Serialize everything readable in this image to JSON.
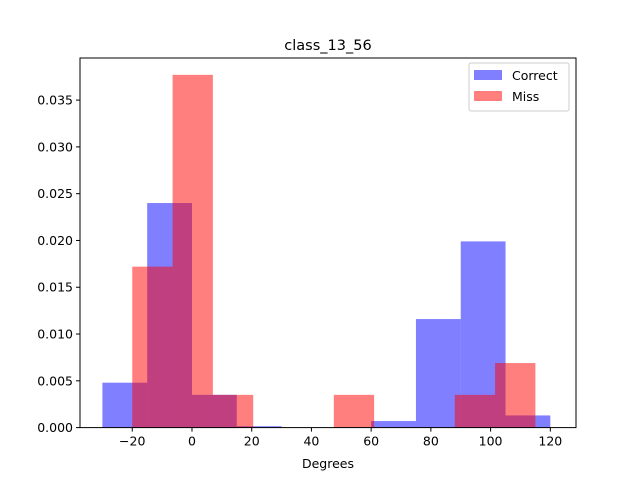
{
  "chart_data": {
    "type": "histogram",
    "title": "class_13_56",
    "xlabel": "Degrees",
    "ylabel": "",
    "xlim": [
      -37.5,
      128.6
    ],
    "ylim": [
      0,
      0.0395
    ],
    "xticks": [
      -20,
      0,
      20,
      40,
      60,
      80,
      100,
      120
    ],
    "xtick_labels": [
      "−20",
      "0",
      "20",
      "40",
      "60",
      "80",
      "100",
      "120"
    ],
    "yticks": [
      0,
      0.005,
      0.01,
      0.015,
      0.02,
      0.025,
      0.03,
      0.035
    ],
    "ytick_labels": [
      "0.000",
      "0.005",
      "0.010",
      "0.015",
      "0.020",
      "0.025",
      "0.030",
      "0.035"
    ],
    "legend_position": "top-right",
    "series": [
      {
        "name": "Correct",
        "color": "#0000ff",
        "alpha": 0.5,
        "bin_edges": [
          -30,
          -15,
          0,
          15,
          30,
          45,
          60,
          75,
          90,
          105,
          120
        ],
        "values": [
          0.0048,
          0.024,
          0.0035,
          0.00015,
          0,
          0,
          0.0007,
          0.0116,
          0.0199,
          0.0013
        ]
      },
      {
        "name": "Miss",
        "color": "#ff0000",
        "alpha": 0.5,
        "bin_edges": [
          -20,
          -6.5,
          7,
          20.5,
          34,
          47.5,
          61,
          74.5,
          88,
          101.5,
          115
        ],
        "values": [
          0.0172,
          0.0377,
          0.0035,
          0,
          0,
          0.0035,
          0,
          0,
          0.0035,
          0.0069
        ]
      }
    ]
  }
}
